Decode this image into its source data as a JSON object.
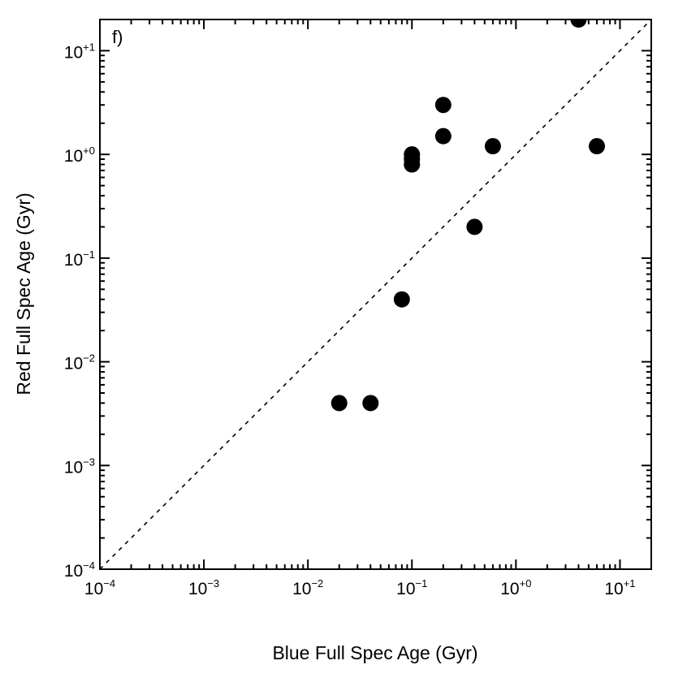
{
  "chart_data": {
    "type": "scatter",
    "panel_label": "f)",
    "xlabel": "Blue Full Spec Age (Gyr)",
    "ylabel": "Red Full Spec Age (Gyr)",
    "xscale": "log",
    "yscale": "log",
    "xlim": [
      0.0001,
      20
    ],
    "ylim": [
      0.0001,
      20
    ],
    "x_ticks": [
      {
        "value": 0.0001,
        "base": "10",
        "exp": "−4"
      },
      {
        "value": 0.001,
        "base": "10",
        "exp": "−3"
      },
      {
        "value": 0.01,
        "base": "10",
        "exp": "−2"
      },
      {
        "value": 0.1,
        "base": "10",
        "exp": "−1"
      },
      {
        "value": 1,
        "base": "10",
        "exp": "+0"
      },
      {
        "value": 10,
        "base": "10",
        "exp": "+1"
      }
    ],
    "y_ticks": [
      {
        "value": 0.0001,
        "base": "10",
        "exp": "−4"
      },
      {
        "value": 0.001,
        "base": "10",
        "exp": "−3"
      },
      {
        "value": 0.01,
        "base": "10",
        "exp": "−2"
      },
      {
        "value": 0.1,
        "base": "10",
        "exp": "−1"
      },
      {
        "value": 1,
        "base": "10",
        "exp": "+0"
      },
      {
        "value": 10,
        "base": "10",
        "exp": "+1"
      }
    ],
    "reference_line": {
      "type": "one-to-one",
      "style": "dotted"
    },
    "grid": false,
    "points": [
      {
        "x": 0.02,
        "y": 0.004
      },
      {
        "x": 0.04,
        "y": 0.004
      },
      {
        "x": 0.08,
        "y": 0.04
      },
      {
        "x": 0.1,
        "y": 0.8
      },
      {
        "x": 0.1,
        "y": 0.9
      },
      {
        "x": 0.1,
        "y": 1.0
      },
      {
        "x": 0.2,
        "y": 1.5
      },
      {
        "x": 0.2,
        "y": 3.0
      },
      {
        "x": 0.4,
        "y": 0.2
      },
      {
        "x": 0.6,
        "y": 1.2
      },
      {
        "x": 4.0,
        "y": 20
      },
      {
        "x": 6.0,
        "y": 1.2
      }
    ]
  }
}
